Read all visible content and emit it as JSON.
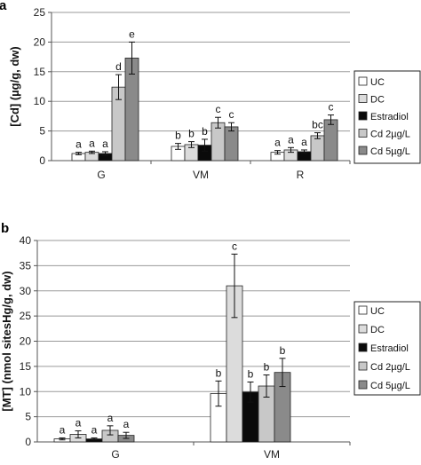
{
  "colors": {
    "UC": "#ffffff",
    "DC": "#dcdcdc",
    "Estradiol": "#0a0a0a",
    "Cd 2µg/L": "#c8c8c8",
    "Cd 5µg/L": "#8a8a8a",
    "grid": "#9a9a9a",
    "axis": "#555555"
  },
  "chart_data": [
    {
      "type": "bar",
      "panel": "a",
      "ylabel": "[Cd] (µg/g, dw)",
      "xlabel": "",
      "ylim": [
        0,
        25
      ],
      "yticks": [
        0,
        5,
        10,
        15,
        20,
        25
      ],
      "grid": true,
      "legend_position": "right",
      "categories": [
        "G",
        "VM",
        "R"
      ],
      "series": [
        {
          "name": "UC",
          "values": [
            1.2,
            2.4,
            1.4
          ],
          "errors": [
            0.2,
            0.5,
            0.3
          ],
          "letters": [
            "a",
            "b",
            "a"
          ]
        },
        {
          "name": "DC",
          "values": [
            1.4,
            2.7,
            1.8
          ],
          "errors": [
            0.2,
            0.5,
            0.4
          ],
          "letters": [
            "a",
            "b",
            "a"
          ]
        },
        {
          "name": "Estradiol",
          "values": [
            1.2,
            2.6,
            1.5
          ],
          "errors": [
            0.3,
            1.0,
            0.3
          ],
          "letters": [
            "a",
            "b",
            "a"
          ]
        },
        {
          "name": "Cd 2µg/L",
          "values": [
            12.4,
            6.4,
            4.2
          ],
          "errors": [
            2.1,
            0.9,
            0.5
          ],
          "letters": [
            "d",
            "c",
            "bc"
          ]
        },
        {
          "name": "Cd 5µg/L",
          "values": [
            17.3,
            5.7,
            6.9
          ],
          "errors": [
            2.7,
            0.7,
            0.8
          ],
          "letters": [
            "e",
            "c",
            "c"
          ]
        }
      ]
    },
    {
      "type": "bar",
      "panel": "b",
      "ylabel": "[MT] (nmol sitesHg/g, dw)",
      "xlabel": "",
      "ylim": [
        0,
        40
      ],
      "yticks": [
        0,
        5,
        10,
        15,
        20,
        25,
        30,
        35,
        40
      ],
      "grid": true,
      "legend_position": "right",
      "categories": [
        "G",
        "VM"
      ],
      "series": [
        {
          "name": "UC",
          "values": [
            0.6,
            9.6
          ],
          "errors": [
            0.2,
            2.5
          ],
          "letters": [
            "a",
            "b"
          ]
        },
        {
          "name": "DC",
          "values": [
            1.5,
            31.0
          ],
          "errors": [
            0.7,
            6.3
          ],
          "letters": [
            "a",
            "c"
          ]
        },
        {
          "name": "Estradiol",
          "values": [
            0.6,
            9.9
          ],
          "errors": [
            0.2,
            2.0
          ],
          "letters": [
            "a",
            "b"
          ]
        },
        {
          "name": "Cd 2µg/L",
          "values": [
            2.3,
            11.1
          ],
          "errors": [
            0.9,
            2.2
          ],
          "letters": [
            "a",
            "b"
          ]
        },
        {
          "name": "Cd 5µg/L",
          "values": [
            1.3,
            13.8
          ],
          "errors": [
            0.6,
            2.8
          ],
          "letters": [
            "a",
            "b"
          ]
        }
      ]
    }
  ]
}
